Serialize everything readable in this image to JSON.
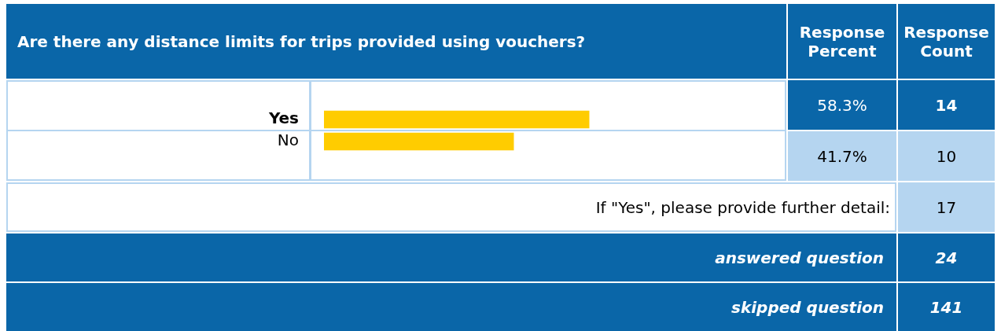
{
  "chart_data": {
    "type": "bar",
    "orientation": "horizontal",
    "title": "Are there any distance limits for trips provided using vouchers?",
    "categories": [
      "Yes",
      "No"
    ],
    "values": [
      58.3,
      41.7
    ],
    "value_labels": [
      "58.3%",
      "41.7%"
    ],
    "color": "#ffcc00",
    "tick_labels": "y",
    "annotations": [
      "Response Percent",
      "Response Count",
      "14",
      "10",
      "If \"Yes\", please provide further detail:",
      "17",
      "answered question",
      "24",
      "skipped question",
      "141"
    ]
  }
}
